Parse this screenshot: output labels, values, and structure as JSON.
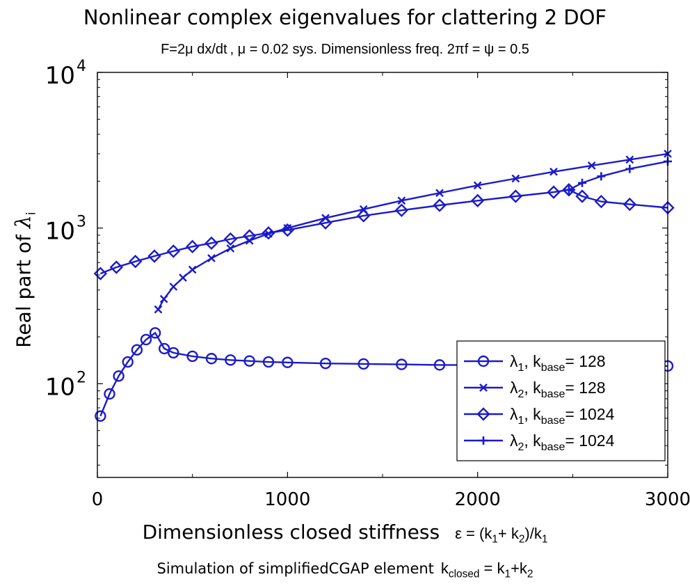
{
  "chart_data": {
    "type": "line",
    "title": "Nonlinear complex eigenvalues for clattering 2 DOF",
    "subtitle": {
      "part1": "F=2μ dx/dt",
      "part2": ", μ = 0.02 sys. Dimensionless freq. 2πf = ψ = 0.5"
    },
    "xlabel": {
      "text": "Dimensionless closed stiffness",
      "formula_eps": "ε = (k",
      "formula_1": "1",
      "formula_plus": "+ k",
      "formula_2": "2",
      "formula_close": ")/k",
      "formula_3": "1"
    },
    "ylabel": {
      "text": "Real part of ",
      "symbol": "λ",
      "sub": "i"
    },
    "caption": {
      "text": "Simulation of simplifiedCGAP element",
      "k": "k",
      "k_sub": "closed",
      "eq": " = k",
      "s1": "1",
      "plus": "+k",
      "s2": "2"
    },
    "x_ticks": [
      "0",
      "1000",
      "2000",
      "3000"
    ],
    "y_ticks": [
      {
        "base": "10",
        "exp": "2"
      },
      {
        "base": "10",
        "exp": "3"
      },
      {
        "base": "10",
        "exp": "4"
      }
    ],
    "xlim": [
      0,
      3000
    ],
    "ylim": [
      25,
      10000
    ],
    "yscale": "log",
    "grid": false,
    "legend_position": "bottom-right",
    "line_color": "#1a1acc",
    "series": [
      {
        "name": "λ1, kbase= 128",
        "legend": {
          "sym": "λ",
          "idx": "1",
          "mid": ", k",
          "sub": "base",
          "tail": "= 128"
        },
        "marker": "circle",
        "x": [
          16,
          64,
          112,
          160,
          208,
          256,
          304,
          352,
          400,
          500,
          600,
          700,
          800,
          900,
          1000,
          1200,
          1400,
          1600,
          1800,
          2000,
          2200,
          2400,
          2600,
          2800,
          3000
        ],
        "values": [
          62,
          86,
          112,
          138,
          165,
          192,
          212,
          168,
          158,
          150,
          145,
          142,
          140,
          138,
          137,
          135,
          134,
          133,
          132,
          132,
          131,
          131,
          130,
          130,
          130
        ]
      },
      {
        "name": "λ2, kbase= 128",
        "legend": {
          "sym": "λ",
          "idx": "2",
          "mid": ", k",
          "sub": "base",
          "tail": "= 128"
        },
        "marker": "x",
        "x": [
          320,
          350,
          400,
          450,
          500,
          600,
          700,
          800,
          900,
          1000,
          1200,
          1400,
          1600,
          1800,
          2000,
          2200,
          2400,
          2600,
          2800,
          3000
        ],
        "values": [
          300,
          350,
          420,
          480,
          540,
          640,
          740,
          830,
          920,
          1000,
          1160,
          1320,
          1500,
          1680,
          1880,
          2080,
          2300,
          2520,
          2750,
          3000
        ]
      },
      {
        "name": "λ1, kbase= 1024",
        "legend": {
          "sym": "λ",
          "idx": "1",
          "mid": ", k",
          "sub": "base",
          "tail": "= 1024"
        },
        "marker": "diamond",
        "x": [
          16,
          100,
          200,
          300,
          400,
          500,
          600,
          700,
          800,
          900,
          1000,
          1200,
          1400,
          1600,
          1800,
          2000,
          2200,
          2400,
          2480,
          2550,
          2650,
          2800,
          3000
        ],
        "values": [
          510,
          560,
          610,
          660,
          710,
          760,
          800,
          850,
          890,
          930,
          970,
          1080,
          1200,
          1300,
          1400,
          1500,
          1600,
          1700,
          1760,
          1600,
          1480,
          1420,
          1350
        ]
      },
      {
        "name": "λ2, kbase= 1024",
        "legend": {
          "sym": "λ",
          "idx": "2",
          "mid": ", k",
          "sub": "base",
          "tail": "= 1024"
        },
        "marker": "plus",
        "x": [
          2480,
          2550,
          2650,
          2800,
          3000
        ],
        "values": [
          1760,
          1950,
          2150,
          2400,
          2680
        ]
      }
    ]
  }
}
